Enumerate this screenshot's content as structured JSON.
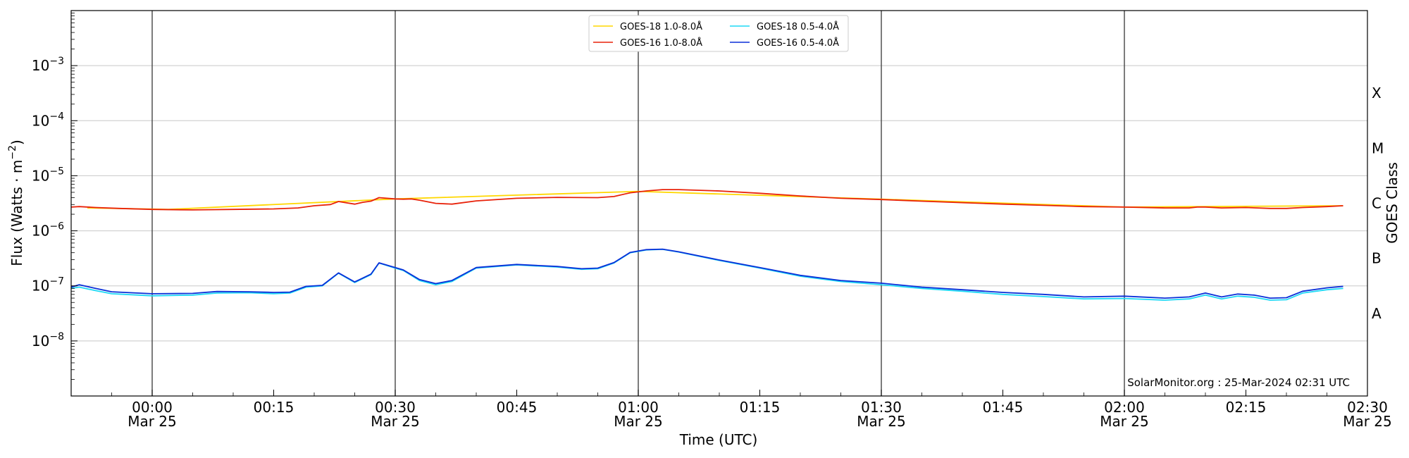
{
  "chart_data": {
    "type": "line",
    "xlabel": "Time (UTC)",
    "ylabel_text": "Flux (Watts · m",
    "ylabel_exp": "−2",
    "ylabel_close": ")",
    "right_label": "GOES Class",
    "y_scale": "log",
    "ylim": [
      1e-09,
      0.01
    ],
    "xlim": [
      "2024-03-24T23:50",
      "2024-03-25T02:30"
    ],
    "x_ticks": [
      {
        "t": "2024-03-25T00:00",
        "label": "00:00",
        "sub": "Mar 25"
      },
      {
        "t": "2024-03-25T00:15",
        "label": "00:15",
        "sub": ""
      },
      {
        "t": "2024-03-25T00:30",
        "label": "00:30",
        "sub": "Mar 25"
      },
      {
        "t": "2024-03-25T00:45",
        "label": "00:45",
        "sub": ""
      },
      {
        "t": "2024-03-25T01:00",
        "label": "01:00",
        "sub": "Mar 25"
      },
      {
        "t": "2024-03-25T01:15",
        "label": "01:15",
        "sub": ""
      },
      {
        "t": "2024-03-25T01:30",
        "label": "01:30",
        "sub": "Mar 25"
      },
      {
        "t": "2024-03-25T01:45",
        "label": "01:45",
        "sub": ""
      },
      {
        "t": "2024-03-25T02:00",
        "label": "02:00",
        "sub": "Mar 25"
      },
      {
        "t": "2024-03-25T02:15",
        "label": "02:15",
        "sub": ""
      },
      {
        "t": "2024-03-25T02:30",
        "label": "02:30",
        "sub": "Mar 25"
      }
    ],
    "y_ticks": [
      {
        "v": 0.001,
        "base": "10",
        "exp": "−3"
      },
      {
        "v": 0.0001,
        "base": "10",
        "exp": "−4"
      },
      {
        "v": 1e-05,
        "base": "10",
        "exp": "−5"
      },
      {
        "v": 1e-06,
        "base": "10",
        "exp": "−6"
      },
      {
        "v": 1e-07,
        "base": "10",
        "exp": "−7"
      },
      {
        "v": 1e-08,
        "base": "10",
        "exp": "−8"
      }
    ],
    "goes_classes": [
      {
        "label": "X",
        "v": 0.000316
      },
      {
        "label": "M",
        "v": 3.16e-05
      },
      {
        "label": "C",
        "v": 3.16e-06
      },
      {
        "label": "B",
        "v": 3.16e-07
      },
      {
        "label": "A",
        "v": 3.16e-08
      }
    ],
    "grid": {
      "horizontal": true,
      "vertical_major": true
    },
    "legend_position": "top-center",
    "series": [
      {
        "name": "GOES-18 1.0-8.0Å",
        "color": "#FFD700",
        "x": [
          "2024-03-24T23:52",
          "2024-03-25T00:02",
          "2024-03-25T00:30",
          "2024-03-25T01:00",
          "2024-03-25T01:30",
          "2024-03-25T02:00",
          "2024-03-25T02:27"
        ],
        "values": [
          2.6e-06,
          2.45e-06,
          3.8e-06,
          5.2e-06,
          3.75e-06,
          2.7e-06,
          2.85e-06
        ]
      },
      {
        "name": "GOES-16 1.0-8.0Å",
        "color": "#E8220A",
        "x": [
          "2024-03-24T23:50",
          "2024-03-24T23:51",
          "2024-03-24T23:53",
          "2024-03-24T23:56",
          "2024-03-25T00:00",
          "2024-03-25T00:05",
          "2024-03-25T00:10",
          "2024-03-25T00:15",
          "2024-03-25T00:18",
          "2024-03-25T00:20",
          "2024-03-25T00:22",
          "2024-03-25T00:23",
          "2024-03-25T00:25",
          "2024-03-25T00:26",
          "2024-03-25T00:27",
          "2024-03-25T00:28",
          "2024-03-25T00:30",
          "2024-03-25T00:31",
          "2024-03-25T00:32",
          "2024-03-25T00:33",
          "2024-03-25T00:35",
          "2024-03-25T00:37",
          "2024-03-25T00:40",
          "2024-03-25T00:45",
          "2024-03-25T00:50",
          "2024-03-25T00:55",
          "2024-03-25T00:57",
          "2024-03-25T00:59",
          "2024-03-25T01:01",
          "2024-03-25T01:03",
          "2024-03-25T01:05",
          "2024-03-25T01:10",
          "2024-03-25T01:15",
          "2024-03-25T01:20",
          "2024-03-25T01:25",
          "2024-03-25T01:30",
          "2024-03-25T01:35",
          "2024-03-25T01:40",
          "2024-03-25T01:45",
          "2024-03-25T01:50",
          "2024-03-25T01:55",
          "2024-03-25T02:00",
          "2024-03-25T02:05",
          "2024-03-25T02:08",
          "2024-03-25T02:09",
          "2024-03-25T02:10",
          "2024-03-25T02:12",
          "2024-03-25T02:15",
          "2024-03-25T02:18",
          "2024-03-25T02:20",
          "2024-03-25T02:22",
          "2024-03-25T02:25",
          "2024-03-25T02:27"
        ],
        "values": [
          2.7e-06,
          2.75e-06,
          2.65e-06,
          2.55e-06,
          2.45e-06,
          2.4e-06,
          2.45e-06,
          2.5e-06,
          2.6e-06,
          2.85e-06,
          3e-06,
          3.4e-06,
          3.05e-06,
          3.3e-06,
          3.45e-06,
          4e-06,
          3.8e-06,
          3.75e-06,
          3.8e-06,
          3.6e-06,
          3.15e-06,
          3.05e-06,
          3.5e-06,
          3.9e-06,
          4.05e-06,
          4e-06,
          4.2e-06,
          4.9e-06,
          5.3e-06,
          5.6e-06,
          5.6e-06,
          5.3e-06,
          4.8e-06,
          4.3e-06,
          3.9e-06,
          3.7e-06,
          3.45e-06,
          3.25e-06,
          3.05e-06,
          2.9e-06,
          2.75e-06,
          2.7e-06,
          2.6e-06,
          2.6e-06,
          2.7e-06,
          2.7e-06,
          2.6e-06,
          2.65e-06,
          2.55e-06,
          2.55e-06,
          2.65e-06,
          2.75e-06,
          2.85e-06
        ]
      },
      {
        "name": "GOES-18 0.5-4.0Å",
        "color": "#1FD9F5",
        "x": [
          "2024-03-24T23:50",
          "2024-03-24T23:51",
          "2024-03-24T23:53",
          "2024-03-24T23:55",
          "2024-03-25T00:00",
          "2024-03-25T00:05",
          "2024-03-25T00:08",
          "2024-03-25T00:12",
          "2024-03-25T00:15",
          "2024-03-25T00:17",
          "2024-03-25T00:19",
          "2024-03-25T00:21",
          "2024-03-25T00:23",
          "2024-03-25T00:25",
          "2024-03-25T00:27",
          "2024-03-25T00:28",
          "2024-03-25T00:30",
          "2024-03-25T00:31",
          "2024-03-25T00:33",
          "2024-03-25T00:35",
          "2024-03-25T00:37",
          "2024-03-25T00:40",
          "2024-03-25T00:45",
          "2024-03-25T00:50",
          "2024-03-25T00:53",
          "2024-03-25T00:55",
          "2024-03-25T00:57",
          "2024-03-25T00:59",
          "2024-03-25T01:01",
          "2024-03-25T01:03",
          "2024-03-25T01:05",
          "2024-03-25T01:10",
          "2024-03-25T01:15",
          "2024-03-25T01:20",
          "2024-03-25T01:25",
          "2024-03-25T01:30",
          "2024-03-25T01:35",
          "2024-03-25T01:40",
          "2024-03-25T01:45",
          "2024-03-25T01:50",
          "2024-03-25T01:55",
          "2024-03-25T02:00",
          "2024-03-25T02:05",
          "2024-03-25T02:08",
          "2024-03-25T02:10",
          "2024-03-25T02:12",
          "2024-03-25T02:14",
          "2024-03-25T02:16",
          "2024-03-25T02:18",
          "2024-03-25T02:20",
          "2024-03-25T02:22",
          "2024-03-25T02:25",
          "2024-03-25T02:27"
        ],
        "values": [
          9e-08,
          9.5e-08,
          8.2e-08,
          7.2e-08,
          6.6e-08,
          6.8e-08,
          7.4e-08,
          7.5e-08,
          7.2e-08,
          7.4e-08,
          9.5e-08,
          1e-07,
          1.7e-07,
          1.15e-07,
          1.6e-07,
          2.6e-07,
          2.1e-07,
          1.9e-07,
          1.25e-07,
          1.05e-07,
          1.2e-07,
          2.1e-07,
          2.4e-07,
          2.2e-07,
          2e-07,
          2.05e-07,
          2.6e-07,
          4e-07,
          4.5e-07,
          4.6e-07,
          4.1e-07,
          2.9e-07,
          2.1e-07,
          1.5e-07,
          1.2e-07,
          1.05e-07,
          9e-08,
          8e-08,
          7e-08,
          6.4e-08,
          5.8e-08,
          5.9e-08,
          5.5e-08,
          5.8e-08,
          6.8e-08,
          5.8e-08,
          6.5e-08,
          6.2e-08,
          5.5e-08,
          5.6e-08,
          7.4e-08,
          8.5e-08,
          9e-08
        ]
      },
      {
        "name": "GOES-16 0.5-4.0Å",
        "color": "#0A2FD8",
        "x": [
          "2024-03-24T23:50",
          "2024-03-24T23:51",
          "2024-03-24T23:53",
          "2024-03-24T23:55",
          "2024-03-25T00:00",
          "2024-03-25T00:05",
          "2024-03-25T00:08",
          "2024-03-25T00:12",
          "2024-03-25T00:15",
          "2024-03-25T00:17",
          "2024-03-25T00:19",
          "2024-03-25T00:21",
          "2024-03-25T00:23",
          "2024-03-25T00:25",
          "2024-03-25T00:27",
          "2024-03-25T00:28",
          "2024-03-25T00:30",
          "2024-03-25T00:31",
          "2024-03-25T00:33",
          "2024-03-25T00:35",
          "2024-03-25T00:37",
          "2024-03-25T00:40",
          "2024-03-25T00:45",
          "2024-03-25T00:50",
          "2024-03-25T00:53",
          "2024-03-25T00:55",
          "2024-03-25T00:57",
          "2024-03-25T00:59",
          "2024-03-25T01:01",
          "2024-03-25T01:03",
          "2024-03-25T01:05",
          "2024-03-25T01:10",
          "2024-03-25T01:15",
          "2024-03-25T01:20",
          "2024-03-25T01:25",
          "2024-03-25T01:30",
          "2024-03-25T01:35",
          "2024-03-25T01:40",
          "2024-03-25T01:45",
          "2024-03-25T01:50",
          "2024-03-25T01:55",
          "2024-03-25T02:00",
          "2024-03-25T02:05",
          "2024-03-25T02:08",
          "2024-03-25T02:10",
          "2024-03-25T02:12",
          "2024-03-25T02:14",
          "2024-03-25T02:16",
          "2024-03-25T02:18",
          "2024-03-25T02:20",
          "2024-03-25T02:22",
          "2024-03-25T02:25",
          "2024-03-25T02:27"
        ],
        "values": [
          9.5e-08,
          1.05e-07,
          9e-08,
          7.8e-08,
          7.2e-08,
          7.3e-08,
          7.9e-08,
          7.8e-08,
          7.6e-08,
          7.7e-08,
          9.8e-08,
          1.02e-07,
          1.72e-07,
          1.18e-07,
          1.63e-07,
          2.62e-07,
          2.15e-07,
          1.95e-07,
          1.3e-07,
          1.1e-07,
          1.25e-07,
          2.15e-07,
          2.45e-07,
          2.25e-07,
          2.05e-07,
          2.1e-07,
          2.65e-07,
          4.05e-07,
          4.55e-07,
          4.65e-07,
          4.15e-07,
          2.95e-07,
          2.15e-07,
          1.55e-07,
          1.25e-07,
          1.12e-07,
          9.5e-08,
          8.5e-08,
          7.6e-08,
          7e-08,
          6.3e-08,
          6.5e-08,
          6e-08,
          6.3e-08,
          7.4e-08,
          6.3e-08,
          7.1e-08,
          6.8e-08,
          6e-08,
          6.1e-08,
          8e-08,
          9.2e-08,
          9.8e-08
        ]
      }
    ]
  },
  "credit": "SolarMonitor.org : 25-Mar-2024 02:31 UTC"
}
